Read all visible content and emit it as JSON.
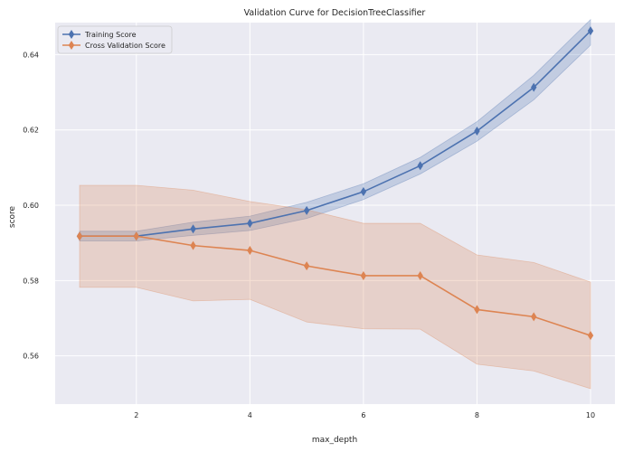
{
  "chart_data": {
    "type": "line",
    "title": "Validation Curve for DecisionTreeClassifier",
    "xlabel": "max_depth",
    "ylabel": "score",
    "xlim": [
      0.57,
      10.43
    ],
    "ylim": [
      0.5472,
      0.6485
    ],
    "xticks": [
      2,
      4,
      6,
      8,
      10
    ],
    "yticks": [
      0.56,
      0.58,
      0.6,
      0.62,
      0.64
    ],
    "ytick_labels": [
      "0.56",
      "0.58",
      "0.60",
      "0.62",
      "0.64"
    ],
    "grid": true,
    "legend_position": "upper-left",
    "x": [
      1,
      2,
      3,
      4,
      5,
      6,
      7,
      8,
      9,
      10
    ],
    "series": [
      {
        "name": "Training Score",
        "color": "#4c72b0",
        "marker": "diamond",
        "values": [
          0.5918,
          0.5918,
          0.5937,
          0.5952,
          0.5986,
          0.6036,
          0.6105,
          0.6197,
          0.6313,
          0.6463
        ],
        "band_lower": [
          0.5905,
          0.5905,
          0.592,
          0.5933,
          0.5965,
          0.6015,
          0.6083,
          0.617,
          0.628,
          0.6425
        ],
        "band_upper": [
          0.5931,
          0.5931,
          0.5955,
          0.5971,
          0.6008,
          0.6057,
          0.6127,
          0.6222,
          0.6345,
          0.6493
        ]
      },
      {
        "name": "Cross Validation Score",
        "color": "#dd8452",
        "marker": "diamond",
        "values": [
          0.5918,
          0.5918,
          0.5893,
          0.588,
          0.5839,
          0.5813,
          0.5813,
          0.5723,
          0.5704,
          0.5654
        ],
        "band_lower": [
          0.5782,
          0.5782,
          0.5746,
          0.575,
          0.569,
          0.5672,
          0.5671,
          0.5578,
          0.556,
          0.5513
        ],
        "band_upper": [
          0.6053,
          0.6053,
          0.604,
          0.601,
          0.5988,
          0.5952,
          0.5952,
          0.5868,
          0.5848,
          0.5796
        ]
      }
    ]
  }
}
